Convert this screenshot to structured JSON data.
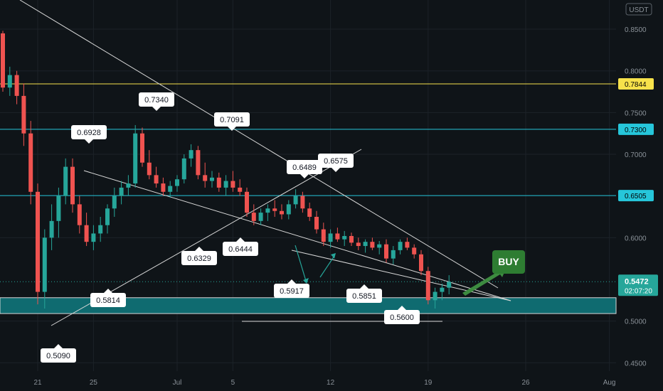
{
  "chart_data": {
    "type": "candlestick",
    "currency": "USDT",
    "y_range": [
      0.44,
      0.885
    ],
    "y_ticks": [
      {
        "v": 0.85,
        "t": "0.8500"
      },
      {
        "v": 0.8,
        "t": "0.8000"
      },
      {
        "v": 0.75,
        "t": "0.7500"
      },
      {
        "v": 0.7,
        "t": "0.7000"
      },
      {
        "v": 0.6,
        "t": "0.6000"
      },
      {
        "v": 0.5,
        "t": "0.5000"
      },
      {
        "v": 0.45,
        "t": "0.4500"
      }
    ],
    "x_ticks": [
      {
        "i": 5,
        "t": "21"
      },
      {
        "i": 13,
        "t": "25"
      },
      {
        "i": 25,
        "t": "Jul"
      },
      {
        "i": 33,
        "t": "5"
      },
      {
        "i": 47,
        "t": "12"
      },
      {
        "i": 61,
        "t": "19"
      },
      {
        "i": 75,
        "t": "26"
      },
      {
        "i": 87,
        "t": "Aug"
      }
    ],
    "horizontal_levels": [
      {
        "value": 0.7844,
        "label": "0.7844",
        "color": "#f7e24b",
        "text": "#000000"
      },
      {
        "value": 0.73,
        "label": "0.7300",
        "color": "#26c6da",
        "text": "#000000"
      },
      {
        "value": 0.6505,
        "label": "0.6505",
        "color": "#26c6da",
        "text": "#000000"
      }
    ],
    "support_zone": {
      "from": 0.509,
      "to": 0.528,
      "color": "#0f6b70"
    },
    "last_price": {
      "value": 0.5472,
      "label": "0.5472",
      "countdown": "02:07:20",
      "color": "#26a69a"
    },
    "callouts": [
      "0.7340",
      "0.7091",
      "0.6928",
      "0.6489",
      "0.6575",
      "0.6329",
      "0.6444",
      "0.5917",
      "0.5851",
      "0.5814",
      "0.5600",
      "0.5090"
    ],
    "signal": {
      "text": "BUY",
      "color": "#2e7d32"
    },
    "colors": {
      "up": "#26a69a",
      "down": "#ef5350",
      "bg": "#0f1418",
      "grid": "#1c2228"
    },
    "candles": [
      [
        0.845,
        0.848,
        0.775,
        0.78
      ],
      [
        0.78,
        0.805,
        0.77,
        0.795
      ],
      [
        0.795,
        0.8,
        0.76,
        0.77
      ],
      [
        0.77,
        0.785,
        0.71,
        0.725
      ],
      [
        0.725,
        0.74,
        0.64,
        0.655
      ],
      [
        0.655,
        0.665,
        0.52,
        0.535
      ],
      [
        0.535,
        0.61,
        0.515,
        0.6
      ],
      [
        0.6,
        0.64,
        0.585,
        0.62
      ],
      [
        0.62,
        0.66,
        0.6,
        0.65
      ],
      [
        0.65,
        0.695,
        0.64,
        0.685
      ],
      [
        0.685,
        0.695,
        0.63,
        0.64
      ],
      [
        0.64,
        0.65,
        0.605,
        0.615
      ],
      [
        0.615,
        0.63,
        0.59,
        0.595
      ],
      [
        0.595,
        0.615,
        0.585,
        0.605
      ],
      [
        0.605,
        0.625,
        0.595,
        0.615
      ],
      [
        0.615,
        0.64,
        0.605,
        0.635
      ],
      [
        0.635,
        0.66,
        0.625,
        0.65
      ],
      [
        0.65,
        0.668,
        0.64,
        0.66
      ],
      [
        0.66,
        0.675,
        0.65,
        0.665
      ],
      [
        0.665,
        0.735,
        0.66,
        0.725
      ],
      [
        0.725,
        0.732,
        0.685,
        0.69
      ],
      [
        0.69,
        0.705,
        0.67,
        0.675
      ],
      [
        0.675,
        0.685,
        0.66,
        0.665
      ],
      [
        0.665,
        0.672,
        0.65,
        0.655
      ],
      [
        0.655,
        0.668,
        0.648,
        0.662
      ],
      [
        0.662,
        0.675,
        0.655,
        0.67
      ],
      [
        0.67,
        0.7,
        0.665,
        0.695
      ],
      [
        0.695,
        0.712,
        0.685,
        0.705
      ],
      [
        0.705,
        0.71,
        0.67,
        0.675
      ],
      [
        0.675,
        0.69,
        0.66,
        0.668
      ],
      [
        0.668,
        0.68,
        0.66,
        0.672
      ],
      [
        0.672,
        0.678,
        0.655,
        0.66
      ],
      [
        0.66,
        0.675,
        0.65,
        0.668
      ],
      [
        0.668,
        0.68,
        0.655,
        0.66
      ],
      [
        0.66,
        0.67,
        0.65,
        0.655
      ],
      [
        0.655,
        0.66,
        0.625,
        0.63
      ],
      [
        0.63,
        0.64,
        0.615,
        0.62
      ],
      [
        0.62,
        0.635,
        0.615,
        0.63
      ],
      [
        0.63,
        0.64,
        0.62,
        0.635
      ],
      [
        0.635,
        0.645,
        0.625,
        0.632
      ],
      [
        0.632,
        0.64,
        0.622,
        0.628
      ],
      [
        0.628,
        0.645,
        0.622,
        0.64
      ],
      [
        0.64,
        0.658,
        0.635,
        0.65
      ],
      [
        0.65,
        0.655,
        0.63,
        0.635
      ],
      [
        0.635,
        0.642,
        0.62,
        0.625
      ],
      [
        0.625,
        0.632,
        0.605,
        0.61
      ],
      [
        0.61,
        0.618,
        0.59,
        0.595
      ],
      [
        0.595,
        0.61,
        0.588,
        0.605
      ],
      [
        0.605,
        0.612,
        0.595,
        0.598
      ],
      [
        0.598,
        0.608,
        0.59,
        0.602
      ],
      [
        0.602,
        0.606,
        0.59,
        0.594
      ],
      [
        0.594,
        0.6,
        0.585,
        0.59
      ],
      [
        0.59,
        0.598,
        0.582,
        0.595
      ],
      [
        0.595,
        0.6,
        0.585,
        0.588
      ],
      [
        0.588,
        0.596,
        0.58,
        0.592
      ],
      [
        0.592,
        0.598,
        0.57,
        0.575
      ],
      [
        0.575,
        0.59,
        0.568,
        0.585
      ],
      [
        0.585,
        0.598,
        0.58,
        0.595
      ],
      [
        0.595,
        0.6,
        0.585,
        0.588
      ],
      [
        0.588,
        0.592,
        0.575,
        0.58
      ],
      [
        0.58,
        0.585,
        0.555,
        0.56
      ],
      [
        0.56,
        0.565,
        0.52,
        0.525
      ],
      [
        0.525,
        0.54,
        0.515,
        0.535
      ],
      [
        0.535,
        0.545,
        0.525,
        0.54
      ],
      [
        0.54,
        0.555,
        0.532,
        0.547
      ]
    ]
  }
}
